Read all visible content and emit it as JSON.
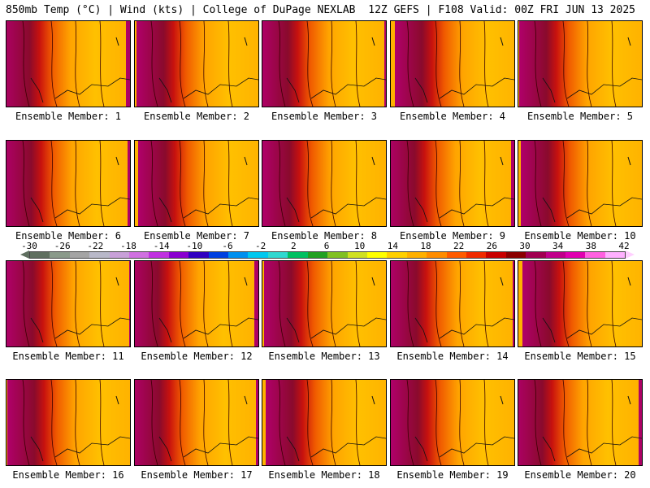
{
  "header": {
    "left": "850mb Temp (°C) | Wind (kts) | College of DuPage NEXLAB",
    "right": "12Z GEFS | F108 Valid: 00Z FRI JUN 13 2025"
  },
  "panels": [
    {
      "label": "Ensemble Member: 1"
    },
    {
      "label": "Ensemble Member: 2"
    },
    {
      "label": "Ensemble Member: 3"
    },
    {
      "label": "Ensemble Member: 4"
    },
    {
      "label": "Ensemble Member: 5"
    },
    {
      "label": "Ensemble Member: 6"
    },
    {
      "label": "Ensemble Member: 7"
    },
    {
      "label": "Ensemble Member: 8"
    },
    {
      "label": "Ensemble Member: 9"
    },
    {
      "label": "Ensemble Member: 10"
    },
    {
      "label": "Ensemble Member: 11"
    },
    {
      "label": "Ensemble Member: 12"
    },
    {
      "label": "Ensemble Member: 13"
    },
    {
      "label": "Ensemble Member: 14"
    },
    {
      "label": "Ensemble Member: 15"
    },
    {
      "label": "Ensemble Member: 16"
    },
    {
      "label": "Ensemble Member: 17"
    },
    {
      "label": "Ensemble Member: 18"
    },
    {
      "label": "Ensemble Member: 19"
    },
    {
      "label": "Ensemble Member: 20"
    }
  ],
  "colorbar": {
    "labels": [
      "-30",
      "-26",
      "-22",
      "-18",
      "-14",
      "-10",
      "-6",
      "-2",
      "2",
      "6",
      "10",
      "14",
      "18",
      "22",
      "26",
      "30",
      "34",
      "38",
      "42"
    ],
    "colors": [
      "#5f6f5f",
      "#8a9a8a",
      "#a4a4a4",
      "#b8b8c8",
      "#c8a0d8",
      "#d070e0",
      "#c030e0",
      "#8a00d0",
      "#3000c0",
      "#0040e0",
      "#0090f0",
      "#00c8f0",
      "#30d8d0",
      "#00c060",
      "#20a020",
      "#80c020",
      "#d0e020",
      "#ffff00",
      "#ffd000",
      "#ffb000",
      "#ff8c00",
      "#ff5a00",
      "#f02a00",
      "#c80000",
      "#8a0000",
      "#a00050",
      "#c0008a",
      "#e000b0",
      "#ff60e0",
      "#ffb0ff"
    ]
  }
}
